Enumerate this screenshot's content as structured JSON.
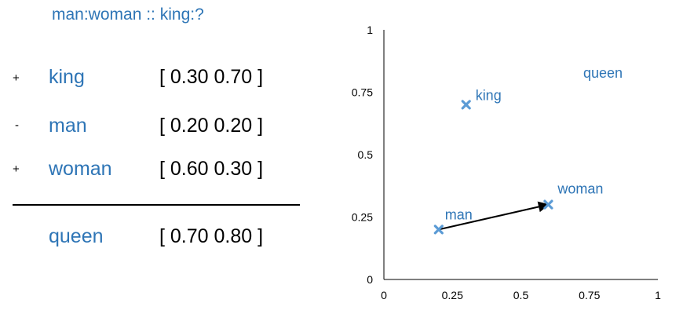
{
  "title": "man:woman :: king:?",
  "equation": {
    "rows": [
      {
        "op": "+",
        "word": "king",
        "vector": "[ 0.30 0.70 ]"
      },
      {
        "op": "-",
        "word": "man",
        "vector": "[ 0.20 0.20 ]"
      },
      {
        "op": "+",
        "word": "woman",
        "vector": "[ 0.60 0.30 ]"
      }
    ],
    "result": {
      "word": "queen",
      "vector": "[ 0.70 0.80 ]"
    }
  },
  "colors": {
    "word_text": "#2e75b6",
    "marker": "#5b9bd5",
    "arrow": "#000000"
  },
  "chart_data": {
    "type": "scatter",
    "xlim": [
      0,
      1
    ],
    "ylim": [
      0,
      1
    ],
    "x_ticks": [
      "0",
      "0.25",
      "0.5",
      "0.75",
      "1"
    ],
    "y_ticks": [
      "0",
      "0.25",
      "0.5",
      "0.75",
      "1"
    ],
    "grid": false,
    "points": [
      {
        "label": "king",
        "x": 0.3,
        "y": 0.7,
        "marker": true
      },
      {
        "label": "man",
        "x": 0.2,
        "y": 0.2,
        "marker": true
      },
      {
        "label": "woman",
        "x": 0.6,
        "y": 0.3,
        "marker": true
      },
      {
        "label": "queen",
        "x": 0.7,
        "y": 0.8,
        "marker": false
      }
    ],
    "arrows": [
      {
        "from": "man",
        "to": "woman"
      }
    ]
  }
}
